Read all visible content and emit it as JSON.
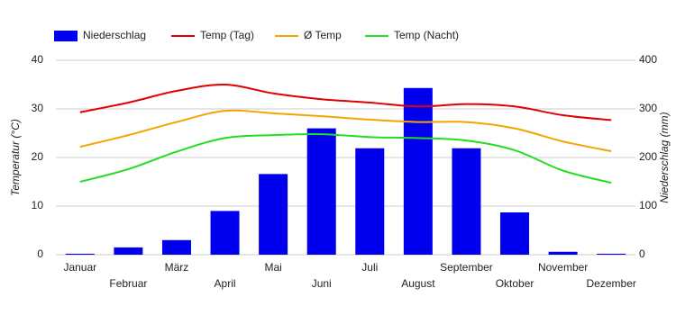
{
  "chart_data": {
    "type": "bar-line",
    "categories": [
      "Januar",
      "Februar",
      "März",
      "April",
      "Mai",
      "Juni",
      "Juli",
      "August",
      "September",
      "Oktober",
      "November",
      "Dezember"
    ],
    "ylabel": "Temperatur (°C)",
    "y2label": "Niederschlag (mm)",
    "ylim": [
      0,
      40
    ],
    "yticks": [
      0,
      10,
      20,
      30,
      40
    ],
    "y2lim": [
      0,
      400
    ],
    "y2ticks": [
      0,
      100,
      200,
      300,
      400
    ],
    "grid": true,
    "legend": "top",
    "series": [
      {
        "name": "Niederschlag",
        "type": "bar",
        "axis": "y2",
        "color": "#0000ee",
        "values": [
          2,
          15,
          30,
          90,
          166,
          260,
          219,
          343,
          219,
          87,
          6,
          2
        ]
      },
      {
        "name": "Temp (Tag)",
        "type": "line",
        "color": "#e00000",
        "values": [
          29.3,
          31.3,
          33.7,
          35,
          33.2,
          32,
          31.3,
          30.5,
          31,
          30.5,
          28.7,
          27.7
        ]
      },
      {
        "name": "Ø Temp",
        "type": "line",
        "color": "#f5a300",
        "values": [
          22.2,
          24.6,
          27.3,
          29.6,
          29.1,
          28.5,
          27.8,
          27.3,
          27.3,
          26,
          23.3,
          21.3
        ]
      },
      {
        "name": "Temp (Nacht)",
        "type": "line",
        "color": "#22dd22",
        "values": [
          15,
          17.6,
          21.2,
          24,
          24.6,
          24.8,
          24.2,
          24,
          23.5,
          21.5,
          17.3,
          14.8
        ]
      }
    ]
  }
}
